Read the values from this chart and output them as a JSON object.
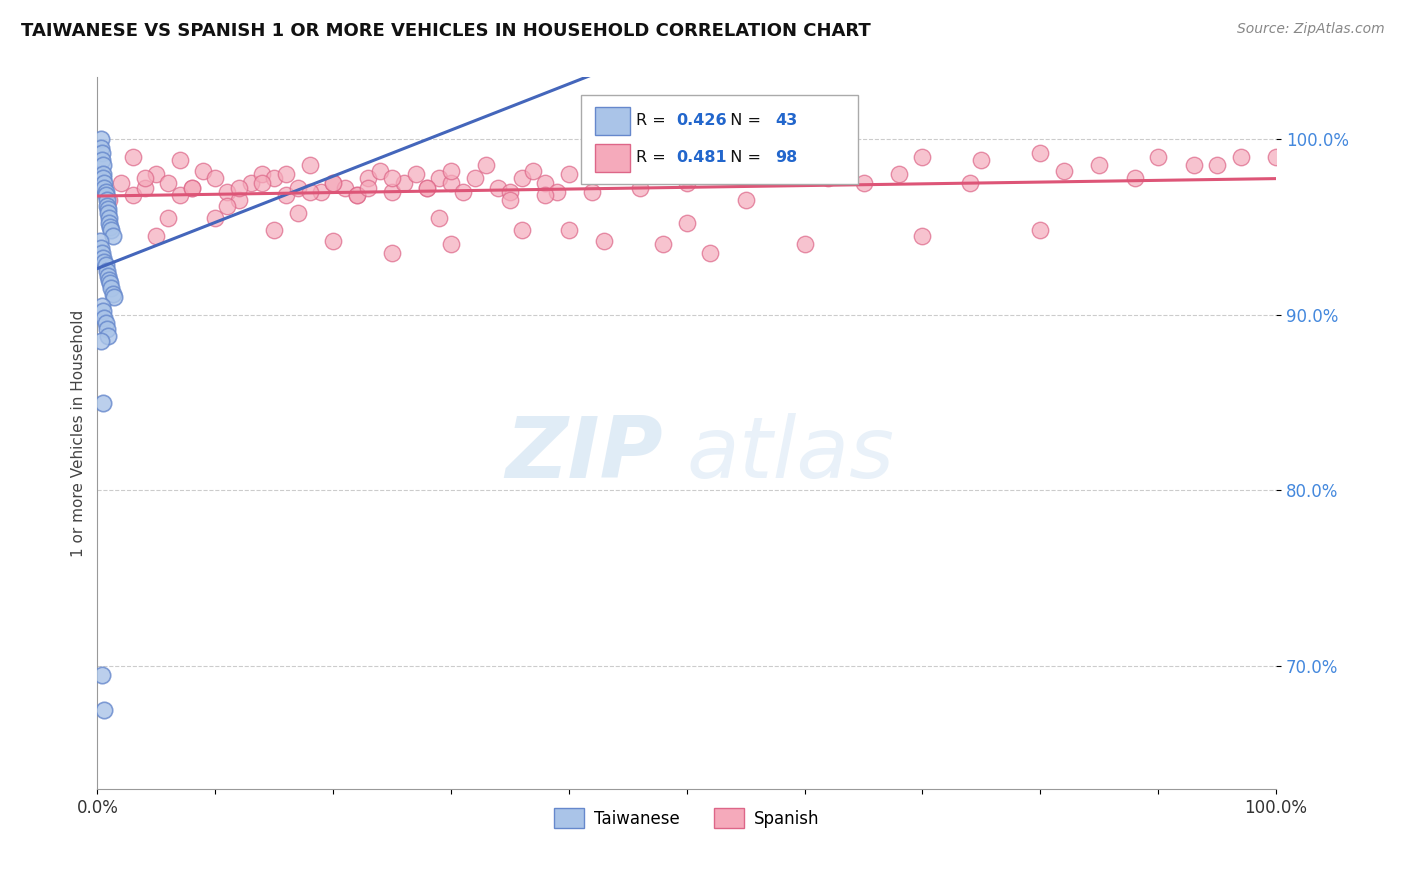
{
  "title": "TAIWANESE VS SPANISH 1 OR MORE VEHICLES IN HOUSEHOLD CORRELATION CHART",
  "source": "Source: ZipAtlas.com",
  "ylabel": "1 or more Vehicles in Household",
  "xlim": [
    0.0,
    100.0
  ],
  "ylim": [
    63.0,
    103.5
  ],
  "ytick_values": [
    70.0,
    80.0,
    90.0,
    100.0
  ],
  "xtick_values": [
    0.0,
    10.0,
    20.0,
    30.0,
    40.0,
    50.0,
    60.0,
    70.0,
    80.0,
    90.0,
    100.0
  ],
  "taiwanese_color": "#aac4e8",
  "spanish_color": "#f5aabb",
  "taiwanese_edge": "#6688cc",
  "spanish_edge": "#dd6688",
  "trendline_taiwanese": "#4466bb",
  "trendline_spanish": "#dd5577",
  "legend_R_taiwanese": "0.426",
  "legend_N_taiwanese": "43",
  "legend_R_spanish": "0.481",
  "legend_N_spanish": "98",
  "watermark_zip": "ZIP",
  "watermark_atlas": "atlas",
  "taiwanese_x": [
    0.3,
    0.3,
    0.4,
    0.4,
    0.5,
    0.5,
    0.5,
    0.6,
    0.6,
    0.7,
    0.7,
    0.8,
    0.8,
    0.9,
    0.9,
    1.0,
    1.0,
    1.1,
    1.2,
    1.3,
    0.2,
    0.3,
    0.4,
    0.5,
    0.6,
    0.7,
    0.8,
    0.9,
    1.0,
    1.1,
    1.2,
    1.3,
    1.4,
    0.4,
    0.5,
    0.6,
    0.7,
    0.8,
    0.9,
    0.3,
    0.5,
    0.4,
    0.6
  ],
  "taiwanese_y": [
    100.0,
    99.5,
    99.2,
    98.8,
    98.5,
    98.0,
    97.8,
    97.5,
    97.2,
    97.0,
    96.8,
    96.5,
    96.2,
    96.0,
    95.8,
    95.5,
    95.2,
    95.0,
    94.8,
    94.5,
    94.2,
    93.8,
    93.5,
    93.2,
    93.0,
    92.8,
    92.5,
    92.2,
    92.0,
    91.8,
    91.5,
    91.2,
    91.0,
    90.5,
    90.2,
    89.8,
    89.5,
    89.2,
    88.8,
    88.5,
    85.0,
    69.5,
    67.5
  ],
  "spanish_x": [
    1.0,
    2.0,
    3.0,
    4.0,
    5.0,
    6.0,
    7.0,
    8.0,
    9.0,
    10.0,
    11.0,
    12.0,
    13.0,
    14.0,
    15.0,
    16.0,
    17.0,
    18.0,
    19.0,
    20.0,
    21.0,
    22.0,
    23.0,
    24.0,
    25.0,
    26.0,
    27.0,
    28.0,
    29.0,
    30.0,
    31.0,
    32.0,
    33.0,
    34.0,
    35.0,
    36.0,
    37.0,
    38.0,
    39.0,
    40.0,
    45.0,
    50.0,
    55.0,
    60.0,
    65.0,
    70.0,
    75.0,
    80.0,
    85.0,
    90.0,
    95.0,
    100.0,
    5.0,
    10.0,
    15.0,
    20.0,
    25.0,
    30.0,
    40.0,
    50.0,
    60.0,
    70.0,
    80.0,
    4.0,
    8.0,
    14.0,
    22.0,
    18.0,
    28.0,
    35.0,
    42.0,
    50.0,
    3.0,
    7.0,
    12.0,
    16.0,
    20.0,
    25.0,
    30.0,
    6.0,
    11.0,
    17.0,
    23.0,
    29.0,
    36.0,
    43.0,
    52.0,
    48.0,
    38.0,
    46.0,
    55.0,
    62.0,
    68.0,
    74.0,
    82.0,
    88.0,
    93.0,
    97.0
  ],
  "spanish_y": [
    96.5,
    97.5,
    96.8,
    97.2,
    98.0,
    97.5,
    96.8,
    97.2,
    98.2,
    97.8,
    97.0,
    96.5,
    97.5,
    98.0,
    97.8,
    96.8,
    97.2,
    98.5,
    97.0,
    97.5,
    97.2,
    96.8,
    97.8,
    98.2,
    97.0,
    97.5,
    98.0,
    97.2,
    97.8,
    97.5,
    97.0,
    97.8,
    98.5,
    97.2,
    97.0,
    97.8,
    98.2,
    97.5,
    97.0,
    98.0,
    98.5,
    97.8,
    98.0,
    98.5,
    97.5,
    99.0,
    98.8,
    99.2,
    98.5,
    99.0,
    98.5,
    99.0,
    94.5,
    95.5,
    94.8,
    94.2,
    93.5,
    94.0,
    94.8,
    95.2,
    94.0,
    94.5,
    94.8,
    97.8,
    97.2,
    97.5,
    96.8,
    97.0,
    97.2,
    96.5,
    97.0,
    97.5,
    99.0,
    98.8,
    97.2,
    98.0,
    97.5,
    97.8,
    98.2,
    95.5,
    96.2,
    95.8,
    97.2,
    95.5,
    94.8,
    94.2,
    93.5,
    94.0,
    96.8,
    97.2,
    96.5,
    97.8,
    98.0,
    97.5,
    98.2,
    97.8,
    98.5,
    99.0
  ]
}
